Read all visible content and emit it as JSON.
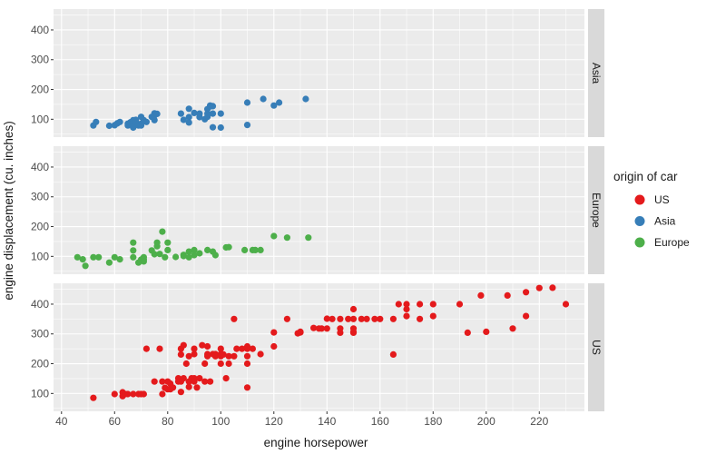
{
  "chart_data": {
    "type": "scatter",
    "layout": "faceted by origin (rows)",
    "xlabel": "engine horsepower",
    "ylabel": "engine displacement (cu. inches)",
    "xlim": [
      37,
      237
    ],
    "ylim": [
      40,
      470
    ],
    "x_ticks": [
      40,
      60,
      80,
      100,
      120,
      140,
      160,
      180,
      200,
      220
    ],
    "y_ticks": [
      100,
      200,
      300,
      400
    ],
    "legend": {
      "title": "origin of car",
      "placement": "right",
      "items": [
        {
          "label": "US",
          "color": "#E41A1C"
        },
        {
          "label": "Asia",
          "color": "#377EB8"
        },
        {
          "label": "Europe",
          "color": "#4DAF4A"
        }
      ]
    },
    "panel_bg": "#EBEBEB",
    "grid_color": "#FFFFFF",
    "strip_bg": "#D9D9D9",
    "facets": [
      {
        "label": "Asia",
        "color": "#377EB8",
        "points": [
          [
            52,
            79
          ],
          [
            53,
            91
          ],
          [
            58,
            78
          ],
          [
            60,
            80
          ],
          [
            61,
            86
          ],
          [
            62,
            91
          ],
          [
            65,
            85
          ],
          [
            65,
            79
          ],
          [
            66,
            90
          ],
          [
            67,
            72
          ],
          [
            67,
            86
          ],
          [
            67,
            97
          ],
          [
            68,
            98
          ],
          [
            68,
            91
          ],
          [
            69,
            79
          ],
          [
            70,
            85
          ],
          [
            70,
            108
          ],
          [
            70,
            79
          ],
          [
            71,
            97
          ],
          [
            72,
            91
          ],
          [
            74,
            108
          ],
          [
            75,
            113
          ],
          [
            75,
            97
          ],
          [
            75,
            120
          ],
          [
            76,
            118
          ],
          [
            85,
            119
          ],
          [
            86,
            98
          ],
          [
            88,
            107
          ],
          [
            88,
            135
          ],
          [
            88,
            89
          ],
          [
            90,
            121
          ],
          [
            92,
            107
          ],
          [
            92,
            119
          ],
          [
            94,
            100
          ],
          [
            95,
            108
          ],
          [
            95,
            119
          ],
          [
            95,
            134
          ],
          [
            96,
            143
          ],
          [
            96,
            146
          ],
          [
            97,
            119
          ],
          [
            97,
            144
          ],
          [
            97,
            73
          ],
          [
            100,
            72
          ],
          [
            100,
            119
          ],
          [
            110,
            81
          ],
          [
            110,
            156
          ],
          [
            116,
            168
          ],
          [
            120,
            146
          ],
          [
            122,
            156
          ],
          [
            132,
            168
          ]
        ]
      },
      {
        "label": "Europe",
        "color": "#4DAF4A",
        "points": [
          [
            46,
            97
          ],
          [
            48,
            90
          ],
          [
            49,
            68
          ],
          [
            52,
            97
          ],
          [
            54,
            97
          ],
          [
            58,
            79
          ],
          [
            60,
            97
          ],
          [
            62,
            90
          ],
          [
            67,
            97
          ],
          [
            67,
            120
          ],
          [
            67,
            146
          ],
          [
            69,
            79
          ],
          [
            70,
            89
          ],
          [
            71,
            90
          ],
          [
            71,
            97
          ],
          [
            71,
            83
          ],
          [
            74,
            120
          ],
          [
            75,
            107
          ],
          [
            76,
            146
          ],
          [
            76,
            134
          ],
          [
            77,
            108
          ],
          [
            78,
            183
          ],
          [
            79,
            97
          ],
          [
            80,
            121
          ],
          [
            80,
            146
          ],
          [
            83,
            98
          ],
          [
            86,
            101
          ],
          [
            86,
            105
          ],
          [
            88,
            97
          ],
          [
            88,
            116
          ],
          [
            90,
            121
          ],
          [
            90,
            104
          ],
          [
            92,
            110
          ],
          [
            95,
            121
          ],
          [
            97,
            116
          ],
          [
            98,
            104
          ],
          [
            102,
            130
          ],
          [
            103,
            131
          ],
          [
            109,
            121
          ],
          [
            112,
            121
          ],
          [
            113,
            121
          ],
          [
            115,
            121
          ],
          [
            120,
            168
          ],
          [
            125,
            163
          ],
          [
            133,
            163
          ]
        ]
      },
      {
        "label": "US",
        "color": "#E41A1C",
        "points": [
          [
            52,
            85
          ],
          [
            60,
            98
          ],
          [
            63,
            104
          ],
          [
            63,
            91
          ],
          [
            64,
            98
          ],
          [
            65,
            98
          ],
          [
            67,
            98
          ],
          [
            69,
            98
          ],
          [
            70,
            98
          ],
          [
            71,
            98
          ],
          [
            72,
            250
          ],
          [
            75,
            140
          ],
          [
            77,
            250
          ],
          [
            78,
            140
          ],
          [
            78,
            98
          ],
          [
            79,
            119
          ],
          [
            80,
            114
          ],
          [
            80,
            140
          ],
          [
            81,
            114
          ],
          [
            81,
            133
          ],
          [
            82,
            120
          ],
          [
            84,
            140
          ],
          [
            84,
            151
          ],
          [
            85,
            250
          ],
          [
            85,
            140
          ],
          [
            85,
            231
          ],
          [
            85,
            105
          ],
          [
            86,
            262
          ],
          [
            86,
            151
          ],
          [
            87,
            200
          ],
          [
            88,
            140
          ],
          [
            88,
            122
          ],
          [
            88,
            225
          ],
          [
            89,
            151
          ],
          [
            90,
            232
          ],
          [
            90,
            250
          ],
          [
            90,
            140
          ],
          [
            90,
            151
          ],
          [
            91,
            120
          ],
          [
            92,
            151
          ],
          [
            93,
            262
          ],
          [
            94,
            140
          ],
          [
            94,
            200
          ],
          [
            95,
            225
          ],
          [
            95,
            232
          ],
          [
            95,
            258
          ],
          [
            96,
            140
          ],
          [
            97,
            232
          ],
          [
            98,
            232
          ],
          [
            98,
            225
          ],
          [
            100,
            250
          ],
          [
            100,
            232
          ],
          [
            100,
            225
          ],
          [
            100,
            200
          ],
          [
            101,
            231
          ],
          [
            102,
            151
          ],
          [
            103,
            200
          ],
          [
            103,
            225
          ],
          [
            105,
            350
          ],
          [
            105,
            225
          ],
          [
            106,
            250
          ],
          [
            108,
            250
          ],
          [
            110,
            258
          ],
          [
            110,
            250
          ],
          [
            110,
            225
          ],
          [
            110,
            200
          ],
          [
            110,
            120
          ],
          [
            112,
            250
          ],
          [
            115,
            232
          ],
          [
            120,
            305
          ],
          [
            120,
            258
          ],
          [
            125,
            350
          ],
          [
            129,
            302
          ],
          [
            130,
            305
          ],
          [
            130,
            307
          ],
          [
            135,
            320
          ],
          [
            137,
            318
          ],
          [
            138,
            318
          ],
          [
            140,
            351
          ],
          [
            140,
            318
          ],
          [
            142,
            350
          ],
          [
            145,
            350
          ],
          [
            145,
            318
          ],
          [
            145,
            304
          ],
          [
            148,
            350
          ],
          [
            150,
            350
          ],
          [
            150,
            318
          ],
          [
            150,
            304
          ],
          [
            150,
            307
          ],
          [
            150,
            383
          ],
          [
            153,
            350
          ],
          [
            155,
            350
          ],
          [
            158,
            350
          ],
          [
            160,
            350
          ],
          [
            165,
            350
          ],
          [
            165,
            231
          ],
          [
            167,
            400
          ],
          [
            170,
            400
          ],
          [
            170,
            360
          ],
          [
            170,
            383
          ],
          [
            175,
            400
          ],
          [
            175,
            350
          ],
          [
            180,
            400
          ],
          [
            180,
            360
          ],
          [
            190,
            400
          ],
          [
            193,
            304
          ],
          [
            198,
            429
          ],
          [
            200,
            307
          ],
          [
            208,
            429
          ],
          [
            210,
            318
          ],
          [
            215,
            360
          ],
          [
            215,
            440
          ],
          [
            220,
            454
          ],
          [
            225,
            455
          ],
          [
            230,
            400
          ]
        ]
      }
    ]
  }
}
